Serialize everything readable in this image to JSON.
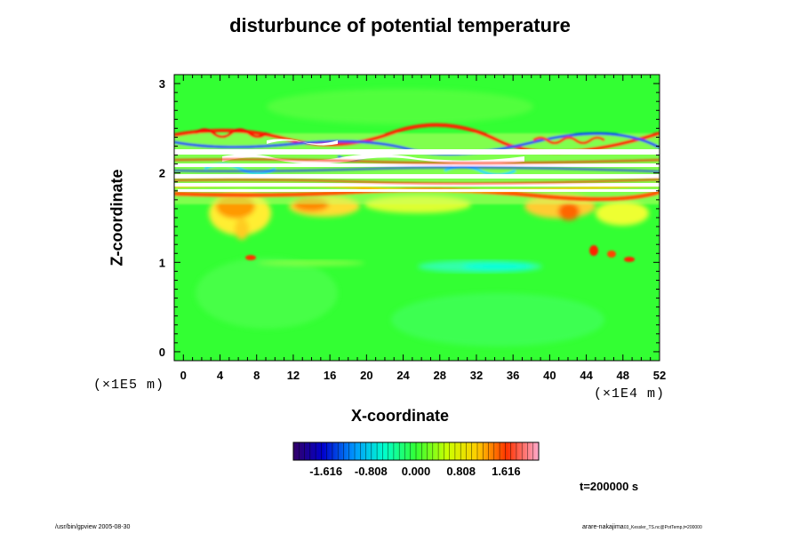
{
  "chart_data": {
    "type": "heatmap",
    "title": "disturbunce of potential temperature",
    "xlabel": "X-coordinate",
    "ylabel": "Z-coordinate",
    "x_scale_note": "(×1E4 m)",
    "y_scale_note": "(×1E5 m)",
    "xlim": [
      -1,
      52
    ],
    "ylim": [
      -0.1,
      3.1
    ],
    "x_ticks": [
      "0",
      "4",
      "8",
      "12",
      "16",
      "20",
      "24",
      "28",
      "32",
      "36",
      "40",
      "44",
      "48",
      "52"
    ],
    "y_ticks": [
      "0",
      "1",
      "2",
      "3"
    ],
    "colorbar": {
      "range": [
        -2.2,
        2.2
      ],
      "tick_labels": [
        "-1.616",
        "-0.808",
        "0.000",
        "0.808",
        "1.616"
      ],
      "tick_values": [
        -1.616,
        -0.808,
        0.0,
        0.808,
        1.616
      ]
    },
    "features": [
      {
        "z_range": [
          1.7,
          2.45
        ],
        "description": "strong oscillating disturbances (white/red/blue bands)"
      },
      {
        "z_range": [
          1.4,
          1.7
        ],
        "description": "positive disturbance plumes (yellow/red)"
      },
      {
        "z_range": [
          0.0,
          1.4
        ],
        "description": "near-zero field with weak negative patch near z≈0.9"
      }
    ],
    "time_label": "t=200000 s"
  },
  "footer": {
    "left": "/usr/bin/gpview 2005-08-30",
    "right_main": "arare-nakajima",
    "right_small": "03_Kessler_TS.nc@PotTemp,t=200000"
  },
  "colors": {
    "background": "#33ff33",
    "positive_low": "#ffff33",
    "positive_mid": "#ff6600",
    "positive_high": "#ff0000",
    "negative_low": "#00ffcc",
    "negative_mid": "#0066ff",
    "saturated": "#ffffff"
  }
}
